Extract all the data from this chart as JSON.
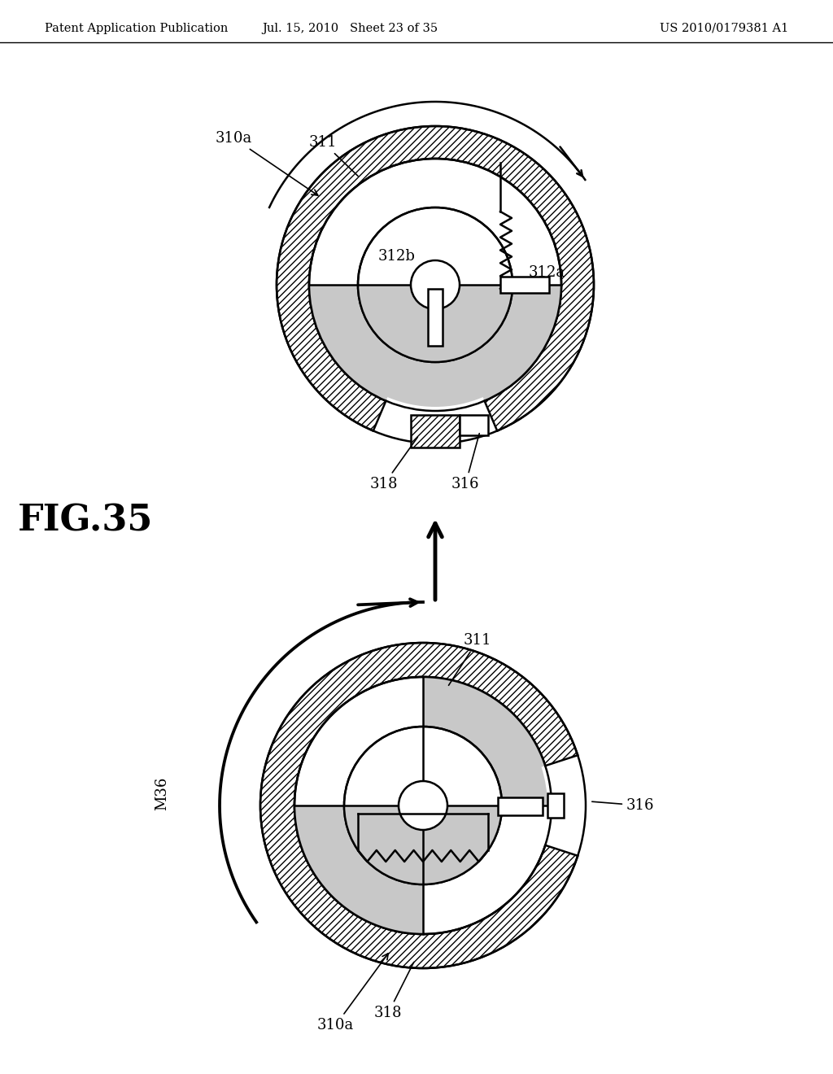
{
  "bg_color": "#ffffff",
  "header_left": "Patent Application Publication",
  "header_mid": "Jul. 15, 2010   Sheet 23 of 35",
  "header_right": "US 2010/0179381 A1",
  "fig_label": "FIG.35",
  "line_color": "#000000",
  "line_width": 1.8,
  "dot_fill": "#c8c8c8",
  "hatch_fill": "#ffffff"
}
